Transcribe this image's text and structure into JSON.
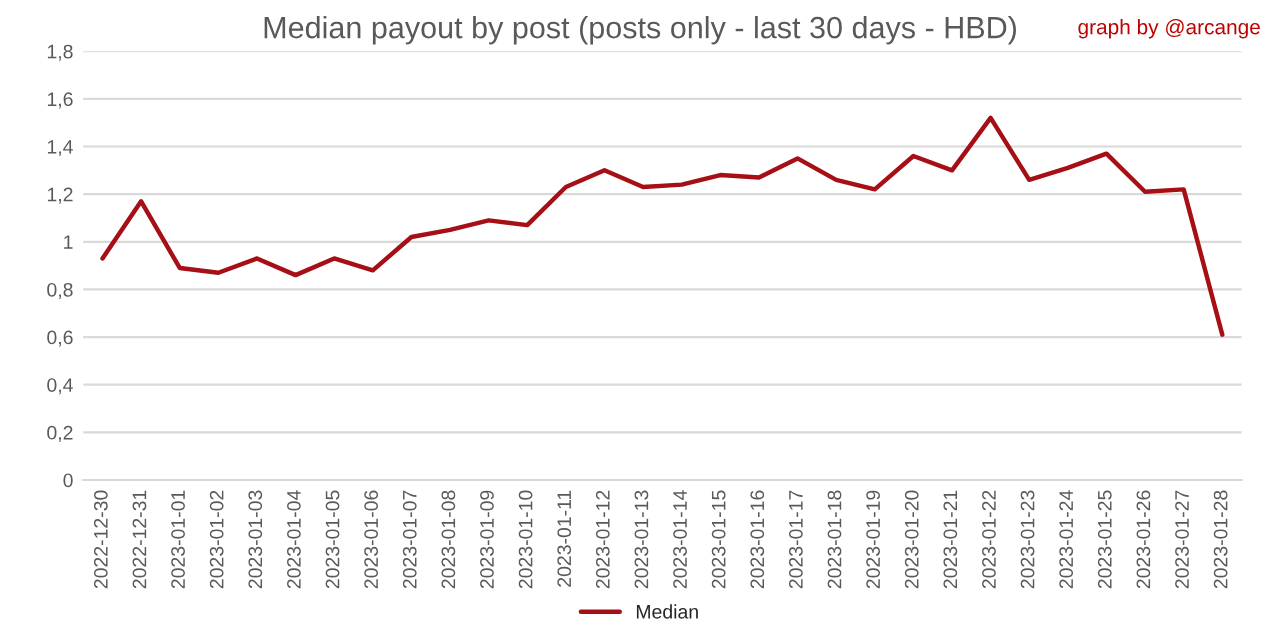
{
  "chart_data": {
    "type": "line",
    "title": "Median payout by post (posts only - last 30 days - HBD)",
    "annotations": [
      "graph by @arcange"
    ],
    "categories": [
      "2022-12-30",
      "2022-12-31",
      "2023-01-01",
      "2023-01-02",
      "2023-01-03",
      "2023-01-04",
      "2023-01-05",
      "2023-01-06",
      "2023-01-07",
      "2023-01-08",
      "2023-01-09",
      "2023-01-10",
      "2023-01-11",
      "2023-01-12",
      "2023-01-13",
      "2023-01-14",
      "2023-01-15",
      "2023-01-16",
      "2023-01-17",
      "2023-01-18",
      "2023-01-19",
      "2023-01-20",
      "2023-01-21",
      "2023-01-22",
      "2023-01-23",
      "2023-01-24",
      "2023-01-25",
      "2023-01-26",
      "2023-01-27",
      "2023-01-28"
    ],
    "series": [
      {
        "name": "Median",
        "color": "#a50f15",
        "values": [
          0.93,
          1.17,
          0.89,
          0.87,
          0.93,
          0.86,
          0.93,
          0.88,
          1.02,
          1.05,
          1.09,
          1.07,
          1.23,
          1.3,
          1.23,
          1.24,
          1.28,
          1.27,
          1.35,
          1.26,
          1.22,
          1.36,
          1.3,
          1.52,
          1.26,
          1.31,
          1.37,
          1.21,
          1.22,
          0.61
        ]
      }
    ],
    "ylim": [
      0,
      1.8
    ],
    "yticks": [
      0,
      {
        "value": 0.2,
        "label": "0,2"
      },
      {
        "value": 0.4,
        "label": "0,4"
      },
      {
        "value": 0.6,
        "label": "0,6"
      },
      {
        "value": 0.8,
        "label": "0,8"
      },
      1,
      {
        "value": 1.2,
        "label": "1,2"
      },
      {
        "value": 1.4,
        "label": "1,4"
      },
      {
        "value": 1.6,
        "label": "1,6"
      },
      {
        "value": 1.8,
        "label": "1,8"
      }
    ],
    "grid": "y",
    "legend": "bottom",
    "marker": "none",
    "line_style": "solid"
  }
}
